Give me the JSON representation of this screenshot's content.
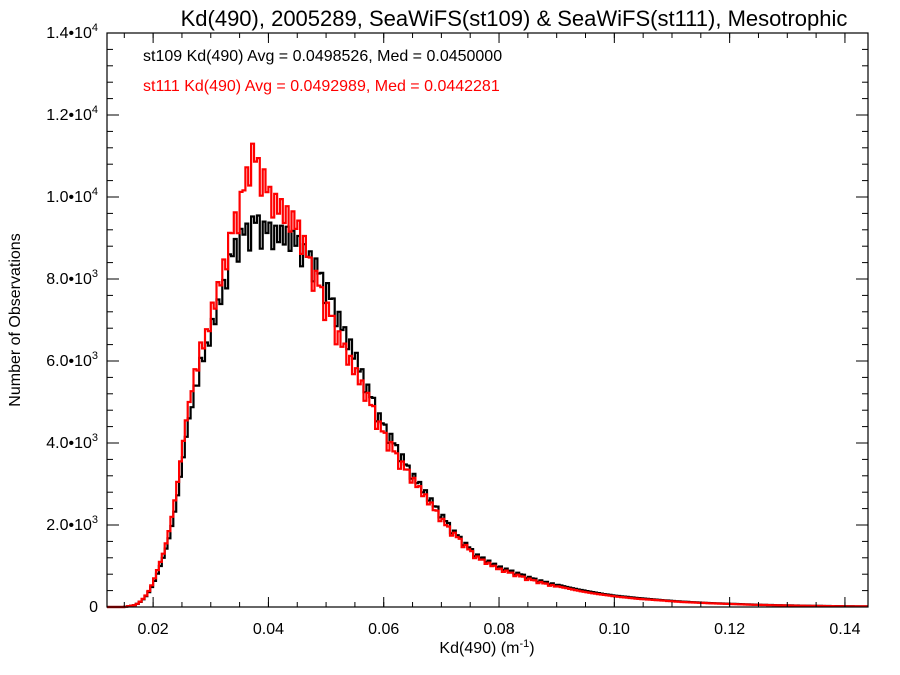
{
  "chart_data": {
    "type": "histogram-step",
    "title": "Kd(490), 2005289, SeaWiFS(st109) & SeaWiFS(st111), Mesotrophic",
    "xlabel": "Kd(490) (m",
    "xlabel_sup": "-1",
    "xlabel_close": ")",
    "ylabel": "Number of Observations",
    "xlim": [
      0.012,
      0.144
    ],
    "ylim": [
      0,
      14000
    ],
    "grid": false,
    "x_ticks": [
      {
        "value": 0.02,
        "label": "0.02"
      },
      {
        "value": 0.04,
        "label": "0.04"
      },
      {
        "value": 0.06,
        "label": "0.06"
      },
      {
        "value": 0.08,
        "label": "0.08"
      },
      {
        "value": 0.1,
        "label": "0.10"
      },
      {
        "value": 0.12,
        "label": "0.12"
      },
      {
        "value": 0.14,
        "label": "0.14"
      }
    ],
    "y_ticks": [
      {
        "value": 0,
        "mant": "0",
        "exp": ""
      },
      {
        "value": 2000,
        "mant": "2.0•10",
        "exp": "3"
      },
      {
        "value": 4000,
        "mant": "4.0•10",
        "exp": "3"
      },
      {
        "value": 6000,
        "mant": "6.0•10",
        "exp": "3"
      },
      {
        "value": 8000,
        "mant": "8.0•10",
        "exp": "3"
      },
      {
        "value": 10000,
        "mant": "1.0•10",
        "exp": "4"
      },
      {
        "value": 12000,
        "mant": "1.2•10",
        "exp": "4"
      },
      {
        "value": 14000,
        "mant": "1.4•10",
        "exp": "4"
      }
    ],
    "annotations": [
      {
        "text": "st109 Kd(490) Avg = 0.0498526, Med = 0.0450000",
        "color": "#000000"
      },
      {
        "text": "st111 Kd(490) Avg = 0.0492989, Med = 0.0442281",
        "color": "#ff0000"
      }
    ],
    "bin_width": 0.0005,
    "series": [
      {
        "name": "st109",
        "color": "#000000",
        "bins": [
          {
            "x": 0.017,
            "y": 50
          },
          {
            "x": 0.018,
            "y": 150
          },
          {
            "x": 0.019,
            "y": 300
          },
          {
            "x": 0.02,
            "y": 550
          },
          {
            "x": 0.021,
            "y": 900
          },
          {
            "x": 0.022,
            "y": 1300
          },
          {
            "x": 0.023,
            "y": 1800
          },
          {
            "x": 0.024,
            "y": 2500
          },
          {
            "x": 0.025,
            "y": 3400
          },
          {
            "x": 0.026,
            "y": 4400
          },
          {
            "x": 0.027,
            "y": 5200
          },
          {
            "x": 0.028,
            "y": 6000
          },
          {
            "x": 0.029,
            "y": 6300
          },
          {
            "x": 0.03,
            "y": 6900
          },
          {
            "x": 0.031,
            "y": 7400
          },
          {
            "x": 0.032,
            "y": 7800
          },
          {
            "x": 0.033,
            "y": 8500
          },
          {
            "x": 0.034,
            "y": 8900
          },
          {
            "x": 0.035,
            "y": 9200
          },
          {
            "x": 0.036,
            "y": 9300
          },
          {
            "x": 0.037,
            "y": 9500
          },
          {
            "x": 0.038,
            "y": 9600
          },
          {
            "x": 0.039,
            "y": 9400
          },
          {
            "x": 0.04,
            "y": 9400
          },
          {
            "x": 0.041,
            "y": 9300
          },
          {
            "x": 0.042,
            "y": 9300
          },
          {
            "x": 0.043,
            "y": 9300
          },
          {
            "x": 0.044,
            "y": 9200
          },
          {
            "x": 0.045,
            "y": 9100
          },
          {
            "x": 0.046,
            "y": 8900
          },
          {
            "x": 0.047,
            "y": 8700
          },
          {
            "x": 0.048,
            "y": 8600
          },
          {
            "x": 0.049,
            "y": 8200
          },
          {
            "x": 0.05,
            "y": 8000
          },
          {
            "x": 0.051,
            "y": 7600
          },
          {
            "x": 0.052,
            "y": 7300
          },
          {
            "x": 0.053,
            "y": 6900
          },
          {
            "x": 0.054,
            "y": 6600
          },
          {
            "x": 0.055,
            "y": 6300
          },
          {
            "x": 0.056,
            "y": 5900
          },
          {
            "x": 0.057,
            "y": 5500
          },
          {
            "x": 0.058,
            "y": 5200
          },
          {
            "x": 0.059,
            "y": 4800
          },
          {
            "x": 0.06,
            "y": 4500
          },
          {
            "x": 0.061,
            "y": 4300
          },
          {
            "x": 0.062,
            "y": 4000
          },
          {
            "x": 0.063,
            "y": 3800
          },
          {
            "x": 0.064,
            "y": 3500
          },
          {
            "x": 0.065,
            "y": 3300
          },
          {
            "x": 0.066,
            "y": 3100
          },
          {
            "x": 0.067,
            "y": 2900
          },
          {
            "x": 0.068,
            "y": 2700
          },
          {
            "x": 0.069,
            "y": 2500
          },
          {
            "x": 0.07,
            "y": 2300
          },
          {
            "x": 0.071,
            "y": 2100
          },
          {
            "x": 0.072,
            "y": 1900
          },
          {
            "x": 0.073,
            "y": 1750
          },
          {
            "x": 0.074,
            "y": 1600
          },
          {
            "x": 0.075,
            "y": 1450
          },
          {
            "x": 0.076,
            "y": 1300
          },
          {
            "x": 0.078,
            "y": 1150
          },
          {
            "x": 0.08,
            "y": 1000
          },
          {
            "x": 0.082,
            "y": 900
          },
          {
            "x": 0.084,
            "y": 800
          },
          {
            "x": 0.086,
            "y": 700
          },
          {
            "x": 0.088,
            "y": 620
          },
          {
            "x": 0.09,
            "y": 550
          },
          {
            "x": 0.092,
            "y": 480
          },
          {
            "x": 0.094,
            "y": 420
          },
          {
            "x": 0.096,
            "y": 370
          },
          {
            "x": 0.098,
            "y": 320
          },
          {
            "x": 0.1,
            "y": 280
          },
          {
            "x": 0.104,
            "y": 220
          },
          {
            "x": 0.108,
            "y": 170
          },
          {
            "x": 0.112,
            "y": 130
          },
          {
            "x": 0.116,
            "y": 100
          },
          {
            "x": 0.12,
            "y": 80
          },
          {
            "x": 0.124,
            "y": 60
          },
          {
            "x": 0.128,
            "y": 45
          },
          {
            "x": 0.132,
            "y": 35
          },
          {
            "x": 0.136,
            "y": 25
          },
          {
            "x": 0.14,
            "y": 20
          },
          {
            "x": 0.144,
            "y": 15
          }
        ]
      },
      {
        "name": "st111",
        "color": "#ff0000",
        "bins": [
          {
            "x": 0.017,
            "y": 50
          },
          {
            "x": 0.018,
            "y": 160
          },
          {
            "x": 0.019,
            "y": 320
          },
          {
            "x": 0.02,
            "y": 600
          },
          {
            "x": 0.021,
            "y": 1000
          },
          {
            "x": 0.022,
            "y": 1400
          },
          {
            "x": 0.023,
            "y": 2000
          },
          {
            "x": 0.024,
            "y": 2800
          },
          {
            "x": 0.025,
            "y": 3800
          },
          {
            "x": 0.026,
            "y": 4800
          },
          {
            "x": 0.027,
            "y": 5600
          },
          {
            "x": 0.028,
            "y": 6400
          },
          {
            "x": 0.029,
            "y": 6600
          },
          {
            "x": 0.03,
            "y": 7300
          },
          {
            "x": 0.031,
            "y": 7800
          },
          {
            "x": 0.032,
            "y": 8300
          },
          {
            "x": 0.033,
            "y": 9000
          },
          {
            "x": 0.034,
            "y": 9500
          },
          {
            "x": 0.035,
            "y": 10000
          },
          {
            "x": 0.036,
            "y": 10500
          },
          {
            "x": 0.037,
            "y": 11400
          },
          {
            "x": 0.038,
            "y": 11000
          },
          {
            "x": 0.039,
            "y": 10800
          },
          {
            "x": 0.04,
            "y": 10300
          },
          {
            "x": 0.041,
            "y": 10100
          },
          {
            "x": 0.042,
            "y": 10000
          },
          {
            "x": 0.043,
            "y": 9800
          },
          {
            "x": 0.044,
            "y": 9700
          },
          {
            "x": 0.045,
            "y": 9500
          },
          {
            "x": 0.046,
            "y": 9200
          },
          {
            "x": 0.047,
            "y": 8600
          },
          {
            "x": 0.048,
            "y": 8300
          },
          {
            "x": 0.049,
            "y": 7900
          },
          {
            "x": 0.05,
            "y": 7500
          },
          {
            "x": 0.051,
            "y": 7200
          },
          {
            "x": 0.052,
            "y": 6800
          },
          {
            "x": 0.053,
            "y": 6500
          },
          {
            "x": 0.054,
            "y": 6200
          },
          {
            "x": 0.055,
            "y": 5900
          },
          {
            "x": 0.056,
            "y": 5600
          },
          {
            "x": 0.057,
            "y": 5300
          },
          {
            "x": 0.058,
            "y": 5000
          },
          {
            "x": 0.059,
            "y": 4600
          },
          {
            "x": 0.06,
            "y": 4300
          },
          {
            "x": 0.061,
            "y": 4100
          },
          {
            "x": 0.062,
            "y": 3800
          },
          {
            "x": 0.063,
            "y": 3600
          },
          {
            "x": 0.064,
            "y": 3400
          },
          {
            "x": 0.065,
            "y": 3200
          },
          {
            "x": 0.066,
            "y": 3000
          },
          {
            "x": 0.067,
            "y": 2800
          },
          {
            "x": 0.068,
            "y": 2600
          },
          {
            "x": 0.069,
            "y": 2400
          },
          {
            "x": 0.07,
            "y": 2200
          },
          {
            "x": 0.071,
            "y": 2000
          },
          {
            "x": 0.072,
            "y": 1850
          },
          {
            "x": 0.073,
            "y": 1700
          },
          {
            "x": 0.074,
            "y": 1550
          },
          {
            "x": 0.075,
            "y": 1400
          },
          {
            "x": 0.076,
            "y": 1250
          },
          {
            "x": 0.078,
            "y": 1100
          },
          {
            "x": 0.08,
            "y": 950
          },
          {
            "x": 0.082,
            "y": 850
          },
          {
            "x": 0.084,
            "y": 750
          },
          {
            "x": 0.086,
            "y": 660
          },
          {
            "x": 0.088,
            "y": 580
          },
          {
            "x": 0.09,
            "y": 510
          },
          {
            "x": 0.092,
            "y": 450
          },
          {
            "x": 0.094,
            "y": 390
          },
          {
            "x": 0.096,
            "y": 340
          },
          {
            "x": 0.098,
            "y": 300
          },
          {
            "x": 0.1,
            "y": 260
          },
          {
            "x": 0.104,
            "y": 200
          },
          {
            "x": 0.108,
            "y": 160
          },
          {
            "x": 0.112,
            "y": 120
          },
          {
            "x": 0.116,
            "y": 95
          },
          {
            "x": 0.12,
            "y": 75
          },
          {
            "x": 0.124,
            "y": 55
          },
          {
            "x": 0.128,
            "y": 42
          },
          {
            "x": 0.132,
            "y": 32
          },
          {
            "x": 0.136,
            "y": 24
          },
          {
            "x": 0.14,
            "y": 18
          },
          {
            "x": 0.144,
            "y": 14
          }
        ]
      }
    ]
  }
}
